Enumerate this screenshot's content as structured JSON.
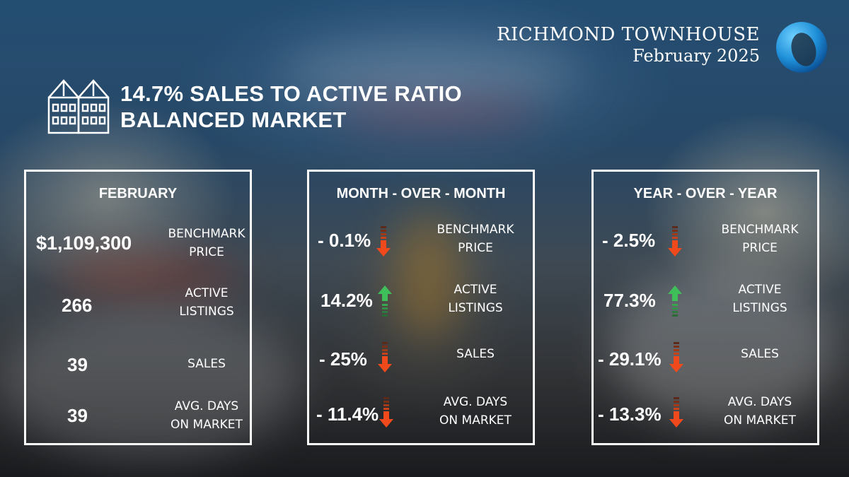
{
  "header": {
    "brand_line1": "RICHMOND TOWNHOUSE",
    "brand_line2": "February 2025",
    "headline_line1": "14.7% SALES TO ACTIVE RATIO",
    "headline_line2": "BALANCED MARKET"
  },
  "colors": {
    "down": "#f04a1c",
    "up": "#3fbf5a",
    "logo": "#1e8fd8"
  },
  "icons": {
    "headline": "townhouse-icon",
    "logo": "brand-ring-logo"
  },
  "panels": [
    {
      "title": "FEBRUARY",
      "rows": [
        {
          "value": "$1,109,300",
          "label_line1": "BENCHMARK",
          "label_line2": "PRICE"
        },
        {
          "value": "266",
          "label_line1": "ACTIVE",
          "label_line2": "LISTINGS"
        },
        {
          "value": "39",
          "label_line1": "SALES",
          "label_line2": ""
        },
        {
          "value": "39",
          "label_line1": "AVG. DAYS",
          "label_line2": "ON MARKET"
        }
      ]
    },
    {
      "title": "MONTH - OVER - MONTH",
      "rows": [
        {
          "value": "- 0.1%",
          "direction": "down",
          "label_line1": "BENCHMARK",
          "label_line2": "PRICE"
        },
        {
          "value": "14.2%",
          "direction": "up",
          "label_line1": "ACTIVE",
          "label_line2": "LISTINGS"
        },
        {
          "value": "- 25%",
          "direction": "down",
          "label_line1": "SALES",
          "label_line2": ""
        },
        {
          "value": "- 11.4%",
          "direction": "down",
          "label_line1": "AVG. DAYS",
          "label_line2": "ON MARKET"
        }
      ]
    },
    {
      "title": "YEAR - OVER - YEAR",
      "rows": [
        {
          "value": "- 2.5%",
          "direction": "down",
          "label_line1": "BENCHMARK",
          "label_line2": "PRICE"
        },
        {
          "value": "77.3%",
          "direction": "up",
          "label_line1": "ACTIVE",
          "label_line2": "LISTINGS"
        },
        {
          "value": "- 29.1%",
          "direction": "down",
          "label_line1": "SALES",
          "label_line2": ""
        },
        {
          "value": "- 13.3%",
          "direction": "down",
          "label_line1": "AVG. DAYS",
          "label_line2": "ON MARKET"
        }
      ]
    }
  ]
}
